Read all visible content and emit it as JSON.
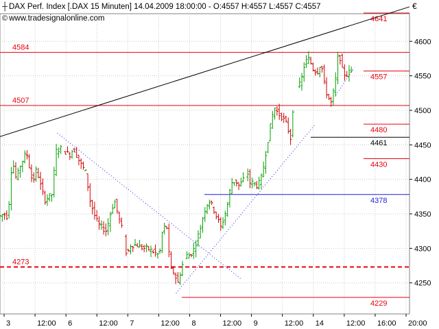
{
  "header": {
    "title": "DAX Perf. Index [.DAX  15 Minuten] 14.04.2009 18:00:00 - O:4557 H:4557 L:4557 C:4557",
    "website": "www.tradesignalonline.com",
    "copyright_symbol": "©",
    "currency": "€"
  },
  "colors": {
    "background": "#ffffff",
    "grid": "#c8c8c8",
    "level_red": "#e8000d",
    "level_blue": "#1f1fd6",
    "trend_black": "#000000",
    "candle_green": "#00a000",
    "candle_red": "#d00000",
    "trend_dotted_blue": "#2020e0"
  },
  "chart_data": {
    "type": "candlestick",
    "y_axis": {
      "range": [
        4205,
        4640
      ],
      "ticks": [
        4250,
        4300,
        4350,
        4400,
        4450,
        4500,
        4550,
        4600
      ],
      "side": "right"
    },
    "x_axis": {
      "labels": [
        "3",
        "12:00",
        "6",
        "12:00",
        "7",
        "12:00",
        "8",
        "12:00",
        "9",
        "12:00",
        "14",
        "12:00",
        "16:00",
        "20:00"
      ]
    },
    "grid": true,
    "horizontal_levels": [
      {
        "value": 4641,
        "label": "4641",
        "color": "#e8000d",
        "style": "solid"
      },
      {
        "value": 4584,
        "label": "4584",
        "color": "#e8000d",
        "style": "solid"
      },
      {
        "value": 4557,
        "label": "4557",
        "color": "#e8000d",
        "style": "solid"
      },
      {
        "value": 4507,
        "label": "4507",
        "color": "#e8000d",
        "style": "solid"
      },
      {
        "value": 4480,
        "label": "4480",
        "color": "#e8000d",
        "style": "solid"
      },
      {
        "value": 4461,
        "label": "4461",
        "color": "#000000",
        "style": "solid"
      },
      {
        "value": 4430,
        "label": "4430",
        "color": "#e8000d",
        "style": "solid"
      },
      {
        "value": 4378,
        "label": "4378",
        "color": "#1f1fd6",
        "style": "solid"
      },
      {
        "value": 4273,
        "label": "4273",
        "color": "#e8000d",
        "style": "dashed"
      },
      {
        "value": 4229,
        "label": "4229",
        "color": "#e8000d",
        "style": "solid"
      }
    ],
    "trend_lines": [
      {
        "kind": "solid",
        "color": "#000000",
        "points": [
          [
            0,
            4462
          ],
          [
            100,
            4650
          ]
        ]
      },
      {
        "kind": "dotted",
        "color": "#2020e0",
        "points": [
          [
            14,
            4467
          ],
          [
            59,
            4255
          ]
        ]
      },
      {
        "kind": "dotted",
        "color": "#2020e0",
        "points": [
          [
            43,
            4235
          ],
          [
            77,
            4480
          ]
        ]
      },
      {
        "kind": "dotted",
        "color": "#2020e0",
        "points": [
          [
            82,
            4522
          ],
          [
            86.5,
            4562
          ]
        ]
      }
    ],
    "price_path": [
      [
        0.0,
        4345
      ],
      [
        1.5,
        4350
      ],
      [
        2.5,
        4345
      ],
      [
        3.5,
        4430
      ],
      [
        4.5,
        4400
      ],
      [
        5.5,
        4420
      ],
      [
        7.0,
        4440
      ],
      [
        8.5,
        4395
      ],
      [
        9.5,
        4415
      ],
      [
        10.5,
        4390
      ],
      [
        11.5,
        4370
      ],
      [
        12.5,
        4375
      ],
      [
        13.5,
        4380
      ],
      [
        14.0,
        4440
      ],
      [
        15.5,
        4445
      ],
      [
        16.5,
        4440
      ],
      [
        17.5,
        4435
      ],
      [
        18.5,
        4445
      ],
      [
        19.5,
        4432
      ],
      [
        20.0,
        4425
      ],
      [
        21.5,
        4410
      ],
      [
        22.5,
        4370
      ],
      [
        23.5,
        4350
      ],
      [
        24.5,
        4335
      ],
      [
        25.5,
        4330
      ],
      [
        26.5,
        4325
      ],
      [
        27.5,
        4350
      ],
      [
        28.5,
        4370
      ],
      [
        29.5,
        4345
      ],
      [
        30.5,
        4325
      ],
      [
        31.5,
        4290
      ],
      [
        32.5,
        4305
      ],
      [
        34.0,
        4305
      ],
      [
        35.5,
        4300
      ],
      [
        36.5,
        4300
      ],
      [
        38.0,
        4295
      ],
      [
        39.5,
        4290
      ],
      [
        40.0,
        4320
      ],
      [
        41.0,
        4335
      ],
      [
        41.5,
        4325
      ],
      [
        42.0,
        4270
      ],
      [
        43.0,
        4265
      ],
      [
        44.0,
        4250
      ],
      [
        45.0,
        4275
      ],
      [
        46.0,
        4290
      ],
      [
        47.0,
        4290
      ],
      [
        48.0,
        4300
      ],
      [
        48.5,
        4310
      ],
      [
        49.5,
        4330
      ],
      [
        50.5,
        4355
      ],
      [
        51.5,
        4370
      ],
      [
        52.5,
        4360
      ],
      [
        53.5,
        4345
      ],
      [
        54.5,
        4330
      ],
      [
        55.5,
        4350
      ],
      [
        56.0,
        4360
      ],
      [
        57.0,
        4395
      ],
      [
        58.0,
        4398
      ],
      [
        59.0,
        4390
      ],
      [
        60.0,
        4400
      ],
      [
        61.0,
        4410
      ],
      [
        61.5,
        4395
      ],
      [
        62.5,
        4395
      ],
      [
        63.5,
        4390
      ],
      [
        64.5,
        4405
      ],
      [
        65.5,
        4440
      ],
      [
        66.5,
        4475
      ],
      [
        67.5,
        4505
      ],
      [
        68.5,
        4495
      ],
      [
        69.5,
        4490
      ],
      [
        70.5,
        4480
      ],
      [
        71.5,
        4460
      ],
      [
        72.0,
        4500
      ],
      [
        73.0,
        4530
      ],
      [
        74.0,
        4540
      ],
      [
        75.0,
        4570
      ],
      [
        76.0,
        4575
      ],
      [
        77.0,
        4560
      ],
      [
        78.0,
        4555
      ],
      [
        79.0,
        4570
      ],
      [
        79.5,
        4545
      ],
      [
        80.5,
        4520
      ],
      [
        81.5,
        4510
      ],
      [
        82.5,
        4545
      ],
      [
        83.0,
        4575
      ],
      [
        83.5,
        4580
      ],
      [
        84.0,
        4560
      ],
      [
        85.0,
        4550
      ],
      [
        86.0,
        4557
      ]
    ]
  }
}
